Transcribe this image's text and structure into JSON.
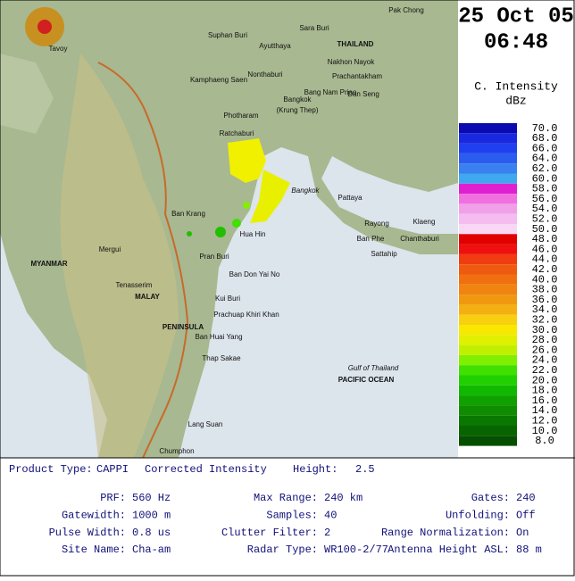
{
  "timestamp": {
    "date": "25 Oct 05",
    "time": "06:48"
  },
  "legend": {
    "title": "C. Intensity",
    "unit": "dBz",
    "levels": [
      "70.0",
      "68.0",
      "66.0",
      "64.0",
      "62.0",
      "60.0",
      "58.0",
      "56.0",
      "54.0",
      "52.0",
      "50.0",
      "48.0",
      "46.0",
      "44.0",
      "42.0",
      "40.0",
      "38.0",
      "36.0",
      "34.0",
      "32.0",
      "30.0",
      "28.0",
      "26.0",
      "24.0",
      "22.0",
      "20.0",
      "18.0",
      "16.0",
      "14.0",
      "12.0",
      "10.0",
      "8.0"
    ],
    "colors": [
      "#0a0ab0",
      "#1a28e0",
      "#2040f0",
      "#2a5cf0",
      "#3a80f0",
      "#40a8f0",
      "#e020d0",
      "#f070e0",
      "#f0a0e8",
      "#f4bcf0",
      "#f8d8f4",
      "#e00000",
      "#f01010",
      "#f03c10",
      "#f05a10",
      "#f07010",
      "#f08410",
      "#f09810",
      "#f4b010",
      "#f8d010",
      "#f8e800",
      "#e0f000",
      "#c0f000",
      "#80f000",
      "#40e000",
      "#20d000",
      "#10b800",
      "#10a000",
      "#108c00",
      "#087800",
      "#086400",
      "#045000"
    ]
  },
  "map": {
    "labels": [
      "THAILAND",
      "Bangkok",
      "(Krung Thep)",
      "Ayutthaya",
      "Sara Buri",
      "Suphan Buri",
      "Kamphaeng Saen",
      "Nonthaburi",
      "Bang Nam Priao",
      "Dan Seng",
      "Prachantakham",
      "Nakhon Nayok",
      "Photharam",
      "Ratchaburi",
      "Bangkok",
      "Pattaya",
      "Rayong",
      "Klaeng",
      "Ban Phe",
      "Chanthaburi",
      "Hua Hin",
      "Pran Buri",
      "Ban Don Yai No",
      "Kui Buri",
      "Prachuap Khiri Khan",
      "Ban Huai Yang",
      "Thap Sakae",
      "Ban Krang",
      "Tavoy",
      "Mergui",
      "MYANMAR",
      "MALAY",
      "PENINSULA",
      "Tenasserim",
      "Chumphon",
      "Gulf of Thailand",
      "PACIFIC OCEAN",
      "Pak Chong",
      "Sattahip",
      "Lang Suan"
    ]
  },
  "info": {
    "product_label": "Product Type:",
    "product_value": "CAPPI",
    "product_desc": "Corrected Intensity",
    "height_label": "Height:",
    "height_value": "2.5",
    "rows": [
      [
        {
          "label": "PRF:",
          "value": "560 Hz"
        },
        {
          "label": "Max Range:",
          "value": "240 km"
        },
        {
          "label": "Gates:",
          "value": "240"
        }
      ],
      [
        {
          "label": "Gatewidth:",
          "value": "1000 m"
        },
        {
          "label": "Samples:",
          "value": "40"
        },
        {
          "label": "Unfolding:",
          "value": "Off"
        }
      ],
      [
        {
          "label": "Pulse Width:",
          "value": "0.8 us"
        },
        {
          "label": "Clutter Filter:",
          "value": "2"
        },
        {
          "label": "Range Normalization:",
          "value": "On"
        }
      ],
      [
        {
          "label": "Site Name:",
          "value": "Cha-am"
        },
        {
          "label": "Radar Type:",
          "value": "WR100-2/77"
        },
        {
          "label": "Antenna Height ASL:",
          "value": "88 m"
        }
      ]
    ]
  }
}
